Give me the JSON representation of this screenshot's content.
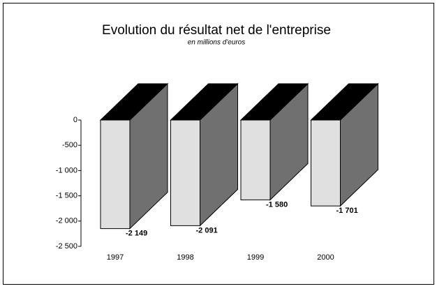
{
  "chart_data": {
    "type": "bar3d",
    "title": "Evolution du résultat net de l'entreprise",
    "subtitle": "en millions d'euros",
    "categories": [
      "1997",
      "1998",
      "1999",
      "2000"
    ],
    "values": [
      -2149,
      -2091,
      -1580,
      -1701
    ],
    "value_labels": [
      "-2 149",
      "-2 091",
      "-1 580",
      "-1 701"
    ],
    "color": "#e0e0e0",
    "ylim": [
      -2500,
      0
    ],
    "yticks": [
      0,
      -500,
      {
        "value": -1000,
        "label": "-1 000"
      },
      {
        "value": -1500,
        "label": "-1 500"
      },
      {
        "value": -2000,
        "label": "-2 000"
      },
      {
        "value": -2500,
        "label": "-2 500"
      }
    ]
  }
}
